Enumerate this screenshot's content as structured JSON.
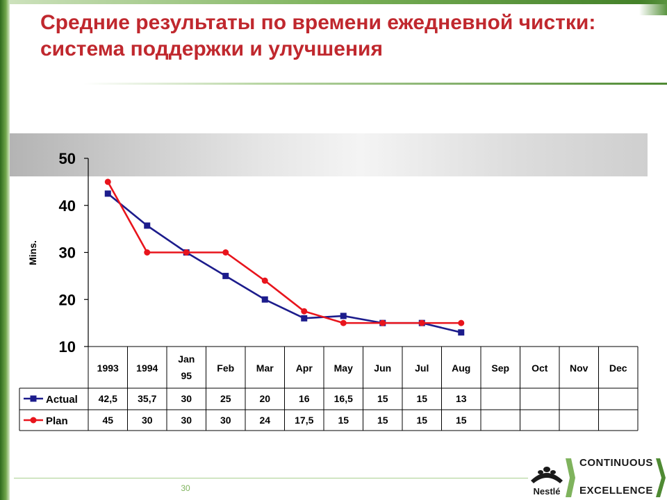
{
  "slide": {
    "title": "Средние результаты по времени ежедневной чистки: система поддержки и улучшения",
    "page_number": "30"
  },
  "brand": {
    "company": "Nestlé",
    "program_top": "CONTINUOUS",
    "program_bottom": "EXCELLENCE"
  },
  "colors": {
    "title": "#c0282e",
    "actual": "#1c1c8c",
    "plan": "#e8141c",
    "accent_green": "#4f8a33"
  },
  "chart_data": {
    "type": "line",
    "ylabel": "Mins.",
    "ylim": [
      10,
      50
    ],
    "yticks": [
      10,
      20,
      30,
      40,
      50
    ],
    "categories": [
      "1993",
      "1994",
      "Jan 95",
      "Feb",
      "Mar",
      "Apr",
      "May",
      "Jun",
      "Jul",
      "Aug",
      "Sep",
      "Oct",
      "Nov",
      "Dec"
    ],
    "series": [
      {
        "name": "Actual",
        "marker": "square",
        "values": [
          42.5,
          35.7,
          30,
          25,
          20,
          16,
          16.5,
          15,
          15,
          13,
          null,
          null,
          null,
          null
        ],
        "labels": [
          "42,5",
          "35,7",
          "30",
          "25",
          "20",
          "16",
          "16,5",
          "15",
          "15",
          "13",
          "",
          "",
          "",
          ""
        ]
      },
      {
        "name": "Plan",
        "marker": "circle",
        "values": [
          45,
          30,
          30,
          30,
          24,
          17.5,
          15,
          15,
          15,
          15,
          null,
          null,
          null,
          null
        ],
        "labels": [
          "45",
          "30",
          "30",
          "30",
          "24",
          "17,5",
          "15",
          "15",
          "15",
          "15",
          "",
          "",
          "",
          ""
        ]
      }
    ],
    "legend": "in-table-left",
    "grid": false
  }
}
